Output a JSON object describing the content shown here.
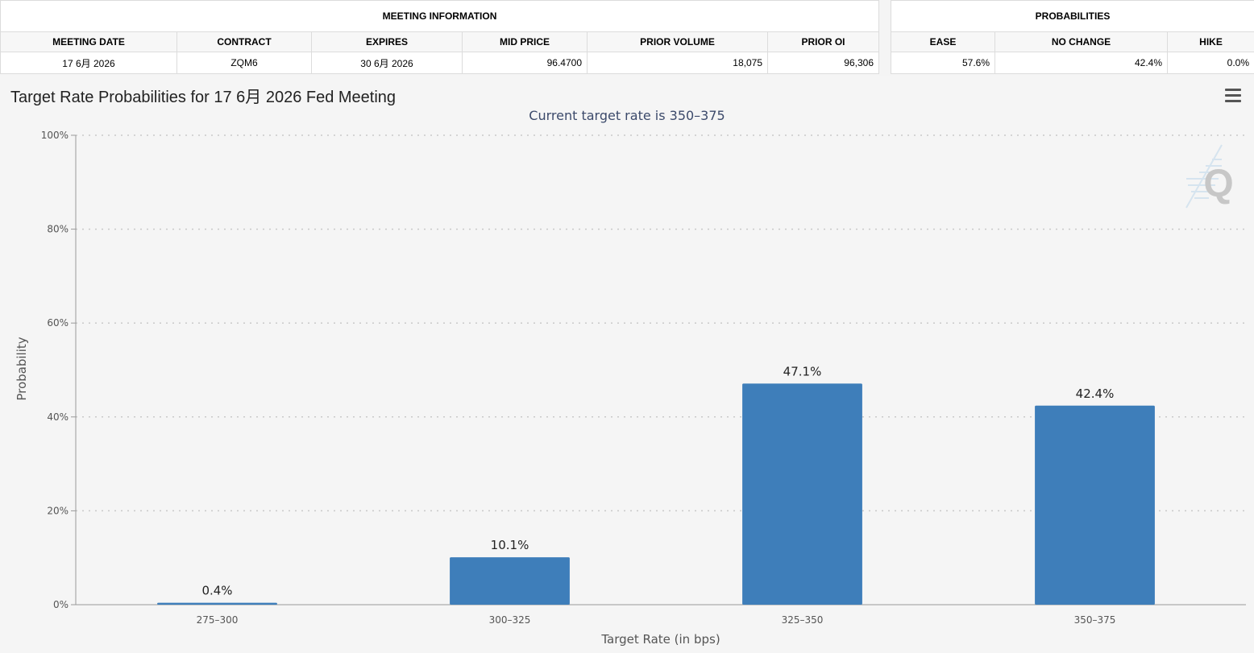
{
  "meeting_info": {
    "title": "MEETING INFORMATION",
    "headers": [
      "MEETING DATE",
      "CONTRACT",
      "EXPIRES",
      "MID PRICE",
      "PRIOR VOLUME",
      "PRIOR OI"
    ],
    "row": [
      "17 6月 2026",
      "ZQM6",
      "30 6月 2026",
      "96.4700",
      "18,075",
      "96,306"
    ]
  },
  "probabilities": {
    "title": "PROBABILITIES",
    "headers": [
      "EASE",
      "NO CHANGE",
      "HIKE"
    ],
    "row": [
      "57.6%",
      "42.4%",
      "0.0%"
    ]
  },
  "menu_icon": "hamburger-menu-icon",
  "logo_icon": "q-logo-icon",
  "logo_letter": "Q",
  "bar_color": "#3e7eba",
  "chart_data": {
    "type": "bar",
    "title": "Target Rate Probabilities for 17 6月 2026 Fed Meeting",
    "subtitle": "Current target rate is 350–375",
    "categories": [
      "275–300",
      "300–325",
      "325–350",
      "350–375"
    ],
    "values": [
      0.4,
      10.1,
      47.1,
      42.4
    ],
    "data_labels": [
      "0.4%",
      "10.1%",
      "47.1%",
      "42.4%"
    ],
    "xlabel": "Target Rate (in bps)",
    "ylabel": "Probability",
    "ylim": [
      0,
      100
    ],
    "yticks": [
      0,
      20,
      40,
      60,
      80,
      100
    ],
    "ytick_labels": [
      "0%",
      "20%",
      "40%",
      "60%",
      "80%",
      "100%"
    ],
    "grid": true,
    "legend": "none"
  }
}
